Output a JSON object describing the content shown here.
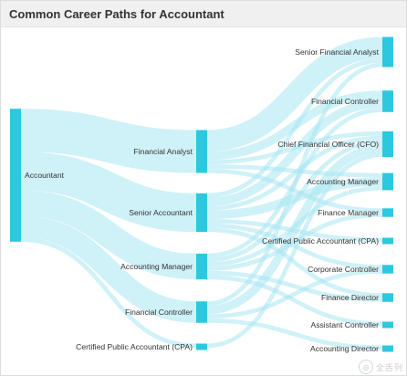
{
  "header": {
    "title": "Common Career Paths for Accountant"
  },
  "colors": {
    "node": "#2bc8e0",
    "link": "#a8e6f2"
  },
  "watermark": {
    "icon": "watermark-logo-icon",
    "text": "全舌列"
  },
  "diagram": {
    "type": "sankey",
    "nodes": [
      {
        "id": "acc",
        "label": "Accountant",
        "column": 0
      },
      {
        "id": "fa",
        "label": "Financial Analyst",
        "column": 1
      },
      {
        "id": "sa",
        "label": "Senior Accountant",
        "column": 1
      },
      {
        "id": "am",
        "label": "Accounting Manager",
        "column": 1
      },
      {
        "id": "fc",
        "label": "Financial Controller",
        "column": 1
      },
      {
        "id": "cpa",
        "label": "Certified Public Accountant (CPA)",
        "column": 1
      },
      {
        "id": "sfa2",
        "label": "Senior Financial Analyst",
        "column": 2
      },
      {
        "id": "fc2",
        "label": "Financial Controller",
        "column": 2
      },
      {
        "id": "cfo2",
        "label": "Chief Financial Officer (CFO)",
        "column": 2
      },
      {
        "id": "am2",
        "label": "Accounting Manager",
        "column": 2
      },
      {
        "id": "fm2",
        "label": "Finance Manager",
        "column": 2
      },
      {
        "id": "cpa2",
        "label": "Certified Public Accountant (CPA)",
        "column": 2
      },
      {
        "id": "cc2",
        "label": "Corporate Controller",
        "column": 2
      },
      {
        "id": "fd2",
        "label": "Finance Director",
        "column": 2
      },
      {
        "id": "ac2",
        "label": "Assistant Controller",
        "column": 2
      },
      {
        "id": "ad2",
        "label": "Accounting Director",
        "column": 2
      }
    ],
    "links": [
      {
        "source": "acc",
        "target": "fa",
        "value": 10
      },
      {
        "source": "acc",
        "target": "sa",
        "value": 9
      },
      {
        "source": "acc",
        "target": "am",
        "value": 6
      },
      {
        "source": "acc",
        "target": "fc",
        "value": 5
      },
      {
        "source": "acc",
        "target": "cpa",
        "value": 1
      },
      {
        "source": "fa",
        "target": "sfa2",
        "value": 5
      },
      {
        "source": "fa",
        "target": "fc2",
        "value": 2
      },
      {
        "source": "fa",
        "target": "cfo2",
        "value": 1
      },
      {
        "source": "fa",
        "target": "am2",
        "value": 1
      },
      {
        "source": "fa",
        "target": "fm2",
        "value": 1
      },
      {
        "source": "sa",
        "target": "sfa2",
        "value": 1
      },
      {
        "source": "sa",
        "target": "fc2",
        "value": 2
      },
      {
        "source": "sa",
        "target": "cfo2",
        "value": 1
      },
      {
        "source": "sa",
        "target": "am2",
        "value": 2
      },
      {
        "source": "sa",
        "target": "cpa2",
        "value": 1
      },
      {
        "source": "sa",
        "target": "cc2",
        "value": 1
      },
      {
        "source": "sa",
        "target": "fd2",
        "value": 1
      },
      {
        "source": "am",
        "target": "fc2",
        "value": 1
      },
      {
        "source": "am",
        "target": "cfo2",
        "value": 1
      },
      {
        "source": "am",
        "target": "am2",
        "value": 1
      },
      {
        "source": "am",
        "target": "fm2",
        "value": 1
      },
      {
        "source": "am",
        "target": "fd2",
        "value": 1
      },
      {
        "source": "am",
        "target": "ac2",
        "value": 1
      },
      {
        "source": "fc",
        "target": "sfa2",
        "value": 1
      },
      {
        "source": "fc",
        "target": "cfo2",
        "value": 2
      },
      {
        "source": "fc",
        "target": "cc2",
        "value": 1
      },
      {
        "source": "fc",
        "target": "ad2",
        "value": 1
      },
      {
        "source": "cpa",
        "target": "cfo2",
        "value": 1
      }
    ]
  }
}
